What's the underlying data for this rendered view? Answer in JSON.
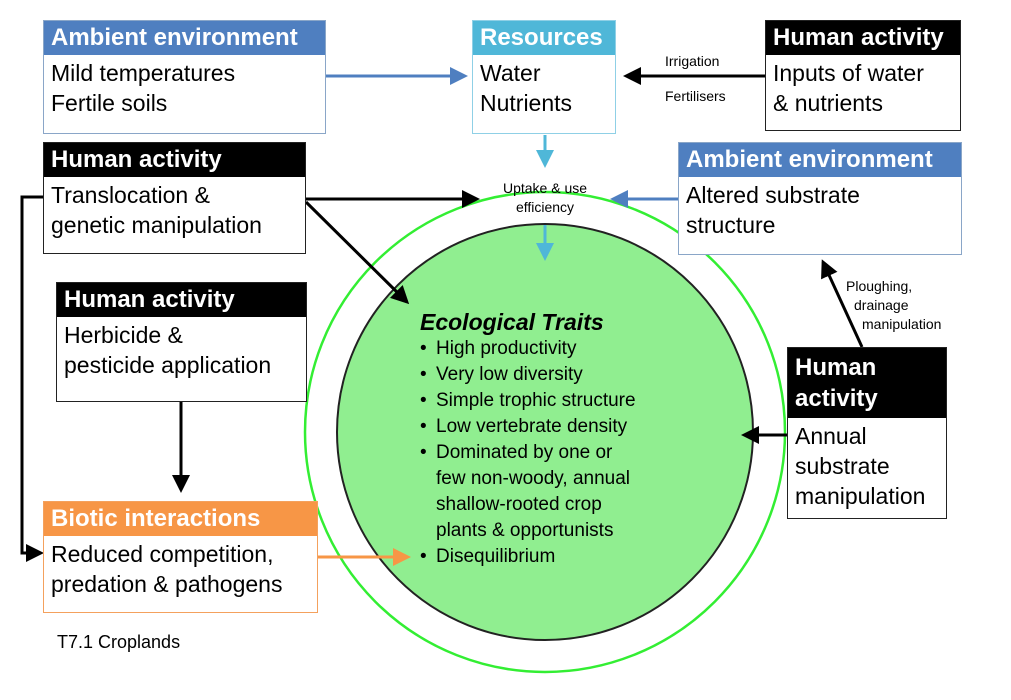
{
  "boxes": {
    "ambient_top": {
      "header": "Ambient environment",
      "lines": [
        "Mild temperatures",
        "Fertile soils"
      ]
    },
    "resources": {
      "header": "Resources",
      "lines": [
        "Water",
        "Nutrients"
      ]
    },
    "human_inputs": {
      "header": "Human activity",
      "lines": [
        "Inputs of water",
        "& nutrients"
      ]
    },
    "human_translocation": {
      "header": "Human activity",
      "lines": [
        "Translocation &",
        "genetic manipulation"
      ]
    },
    "ambient_substrate": {
      "header": "Ambient environment",
      "lines": [
        "Altered substrate",
        "structure"
      ]
    },
    "human_herbicide": {
      "header": "Human activity",
      "lines": [
        "Herbicide &",
        "pesticide application"
      ]
    },
    "human_annual": {
      "header_lines": [
        "Human",
        "activity"
      ],
      "lines": [
        "Annual",
        "substrate",
        "manipulation"
      ]
    },
    "biotic": {
      "header": "Biotic interactions",
      "lines": [
        "Reduced competition,",
        "predation & pathogens"
      ]
    }
  },
  "labels": {
    "irrigation": "Irrigation",
    "fertilisers": "Fertilisers",
    "uptake_line1": "Uptake & use",
    "uptake_line2": "efficiency",
    "ploughing_line1": "Ploughing,",
    "ploughing_line2": "drainage",
    "ploughing_line3": "manipulation"
  },
  "traits": {
    "title": "Ecological Traits",
    "items": [
      "High productivity",
      "Very low diversity",
      "Simple trophic structure",
      "Low vertebrate density",
      "Dominated by one or",
      "few non-woody, annual",
      "shallow-rooted crop",
      "plants & opportunists",
      "Disequilibrium"
    ],
    "bulleted": [
      true,
      true,
      true,
      true,
      true,
      false,
      false,
      false,
      true
    ]
  },
  "caption": "T7.1 Croplands",
  "colors": {
    "blue_header": "#4f7fc0",
    "cyan_header": "#4fb7d8",
    "orange_header": "#f79646",
    "circle_fill": "#90ee90",
    "circle_ring": "#33ee33",
    "arrow_blue": "#4f7fc0",
    "arrow_cyan": "#4fb7d8",
    "arrow_orange": "#f79646"
  }
}
